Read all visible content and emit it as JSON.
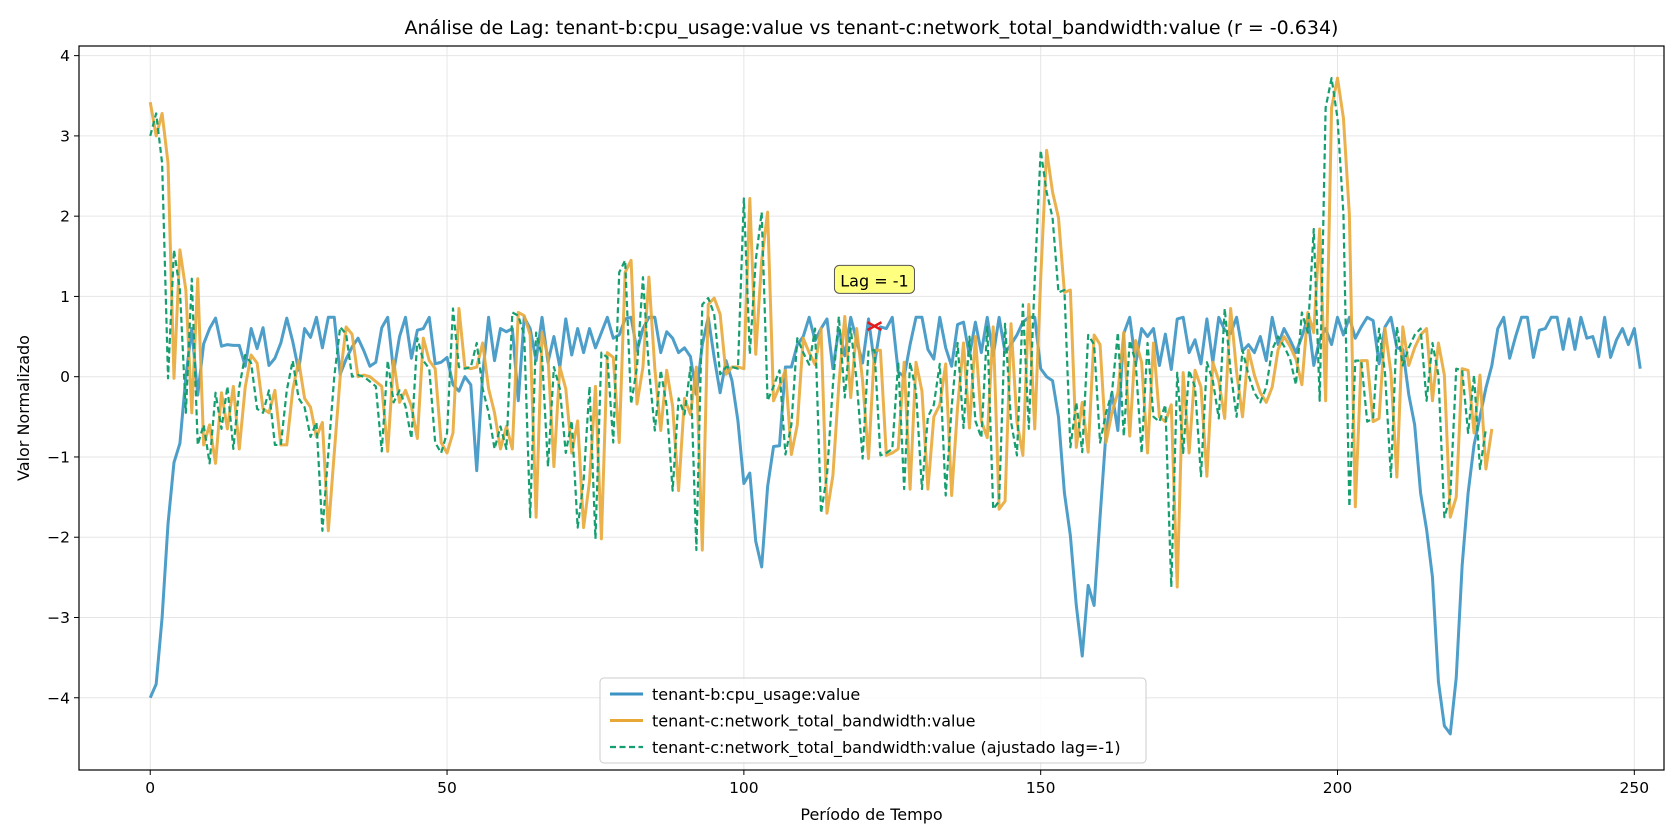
{
  "chart_data": {
    "type": "line",
    "title": "Análise de Lag: tenant-b:cpu_usage:value vs tenant-c:network_total_bandwidth:value (r = -0.634)",
    "xlabel": "Período de Tempo",
    "ylabel": "Valor Normalizado",
    "xlim": [
      -12,
      255
    ],
    "ylim": [
      -4.9,
      4.12
    ],
    "xticks": [
      0,
      50,
      100,
      150,
      200,
      250
    ],
    "yticks": [
      -4,
      -3,
      -2,
      -1,
      0,
      1,
      2,
      3,
      4
    ],
    "grid": true,
    "legend_position": "lower center",
    "annotation": {
      "text": "Lag = -1",
      "point": [
        122,
        0.63
      ],
      "label_at": [
        122,
        1.25
      ],
      "marker": "red x"
    },
    "colors": {
      "series1": "#3a93c3",
      "series2": "#e8a838",
      "series3": "#159e6e",
      "marker": "#e41a1c",
      "annot_bg": "#ffff80"
    },
    "series": [
      {
        "name": "tenant-b:cpu_usage:value",
        "style": "solid",
        "values": [
          -4.0,
          -3.83,
          -3.0,
          -1.83,
          -1.07,
          -0.83,
          0.0,
          0.6,
          -0.23,
          0.41,
          0.6,
          0.73,
          0.38,
          0.4,
          0.39,
          0.39,
          0.13,
          0.6,
          0.35,
          0.61,
          0.14,
          0.23,
          0.42,
          0.73,
          0.44,
          0.08,
          0.6,
          0.49,
          0.74,
          0.36,
          0.74,
          0.74,
          0.03,
          0.22,
          0.37,
          0.48,
          0.32,
          0.13,
          0.18,
          0.61,
          0.74,
          0.06,
          0.5,
          0.74,
          0.23,
          0.58,
          0.6,
          0.74,
          0.16,
          0.18,
          0.24,
          -0.1,
          -0.18,
          0.0,
          -0.1,
          -1.17,
          0.03,
          0.74,
          0.2,
          0.6,
          0.56,
          0.6,
          -0.3,
          0.74,
          0.6,
          0.2,
          0.74,
          0.18,
          0.5,
          0.12,
          0.72,
          0.27,
          0.6,
          0.3,
          0.6,
          0.36,
          0.55,
          0.74,
          0.48,
          0.52,
          0.72,
          0.74,
          0.32,
          0.6,
          0.74,
          0.74,
          0.3,
          0.56,
          0.48,
          0.3,
          0.36,
          0.25,
          -0.22,
          0.4,
          0.74,
          0.24,
          -0.2,
          0.2,
          -0.05,
          -0.55,
          -1.33,
          -1.2,
          -2.05,
          -2.37,
          -1.37,
          -0.87,
          -0.86,
          0.12,
          0.12,
          0.4,
          0.5,
          0.74,
          0.45,
          0.6,
          0.72,
          0.1,
          0.6,
          0.26,
          0.74,
          0.45,
          0.17,
          0.72,
          0.16,
          0.62,
          0.6,
          0.74,
          0.06,
          0.0,
          0.4,
          0.74,
          0.74,
          0.34,
          0.22,
          0.74,
          0.36,
          0.13,
          0.65,
          0.68,
          0.26,
          0.68,
          0.3,
          0.74,
          0.26,
          0.74,
          0.3,
          0.4,
          0.52,
          0.68,
          0.74,
          0.74,
          0.1,
          0.0,
          -0.05,
          -0.5,
          -1.45,
          -1.98,
          -2.85,
          -3.48,
          -2.6,
          -2.85,
          -1.75,
          -0.7,
          -0.2,
          -0.67,
          0.54,
          0.74,
          0.16,
          0.6,
          0.5,
          0.6,
          0.14,
          0.53,
          0.09,
          0.72,
          0.74,
          0.3,
          0.46,
          0.16,
          0.72,
          0.18,
          0.74,
          0.58,
          0.54,
          0.74,
          0.32,
          0.4,
          0.3,
          0.5,
          0.2,
          0.74,
          0.4,
          0.6,
          0.46,
          0.3,
          0.5,
          0.74,
          0.14,
          0.46,
          0.6,
          0.4,
          0.74,
          0.52,
          0.74,
          0.48,
          0.62,
          0.74,
          0.7,
          0.16,
          0.62,
          0.74,
          0.36,
          0.34,
          -0.22,
          -0.6,
          -1.45,
          -1.9,
          -2.5,
          -3.8,
          -4.35,
          -4.45,
          -3.75,
          -2.35,
          -1.45,
          -0.85,
          -0.5,
          -0.14,
          0.14,
          0.6,
          0.74,
          0.23,
          0.5,
          0.74,
          0.74,
          0.24,
          0.58,
          0.6,
          0.74,
          0.74,
          0.34,
          0.72,
          0.34,
          0.74,
          0.48,
          0.5,
          0.25,
          0.74,
          0.24,
          0.46,
          0.6,
          0.4,
          0.6,
          0.1
        ]
      },
      {
        "name": "tenant-c:network_total_bandwidth:value",
        "style": "solid",
        "values": [
          3.42,
          3.0,
          3.28,
          2.66,
          -0.02,
          1.58,
          1.08,
          -0.45,
          1.22,
          -0.85,
          -0.6,
          -1.08,
          -0.2,
          -0.65,
          -0.12,
          -0.9,
          -0.13,
          0.27,
          0.17,
          -0.4,
          -0.45,
          -0.17,
          -0.85,
          -0.85,
          -0.17,
          0.2,
          -0.27,
          -0.38,
          -0.75,
          -0.57,
          -1.92,
          -0.95,
          0.0,
          0.62,
          0.53,
          0.0,
          0.02,
          0.0,
          -0.06,
          -0.12,
          -0.93,
          0.2,
          -0.32,
          -0.17,
          -0.37,
          -0.77,
          0.48,
          0.2,
          0.1,
          -0.82,
          -0.95,
          -0.7,
          0.85,
          0.12,
          0.1,
          0.12,
          0.42,
          -0.15,
          -0.45,
          -0.9,
          -0.62,
          -0.9,
          0.8,
          0.76,
          0.52,
          -1.75,
          0.55,
          0.25,
          -1.12,
          0.12,
          -0.15,
          -0.95,
          -0.55,
          -1.88,
          -1.3,
          -0.12,
          -2.02,
          0.3,
          0.24,
          -0.82,
          1.3,
          1.45,
          -0.34,
          0.12,
          1.24,
          0.1,
          -0.67,
          0.08,
          -0.37,
          -1.42,
          -0.27,
          -0.47,
          0.12,
          -2.16,
          0.9,
          0.98,
          0.78,
          0.03,
          0.12,
          0.12,
          0.1,
          2.22,
          0.28,
          1.45,
          2.05,
          -0.3,
          -0.12,
          0.08,
          -0.97,
          -0.6,
          0.48,
          0.3,
          0.15,
          0.6,
          -1.7,
          -1.23,
          -0.1,
          0.75,
          -0.26,
          0.6,
          -0.05,
          -1.02,
          0.33,
          0.33,
          -0.98,
          -0.95,
          -0.9,
          0.18,
          -1.4,
          0.18,
          -0.18,
          -1.4,
          -0.5,
          -0.35,
          0.16,
          -1.48,
          -0.38,
          0.42,
          -0.64,
          0.5,
          -0.55,
          -0.76,
          0.62,
          -1.65,
          -1.55,
          0.66,
          -0.56,
          -0.98,
          0.9,
          -0.65,
          1.22,
          2.82,
          2.3,
          1.98,
          1.05,
          1.08,
          -0.88,
          -0.32,
          -0.94,
          0.52,
          0.4,
          -0.82,
          -0.45,
          -0.2,
          0.55,
          -0.74,
          0.45,
          0.18,
          -0.95,
          0.42,
          -0.5,
          -0.56,
          -0.35,
          -2.62,
          0.05,
          -0.95,
          0.08,
          -0.13,
          -1.24,
          0.18,
          -0.05,
          -0.52,
          0.85,
          0.06,
          -0.5,
          0.33,
          0.02,
          -0.2,
          -0.32,
          -0.13,
          0.34,
          0.5,
          0.38,
          0.22,
          -0.1,
          0.8,
          0.55,
          1.84,
          -0.3,
          3.35,
          3.72,
          3.22,
          2.02,
          -1.62,
          0.2,
          0.2,
          -0.56,
          -0.52,
          0.6,
          0.05,
          -1.25,
          0.62,
          0.14,
          0.36,
          0.52,
          0.6,
          -0.3,
          0.42,
          0.02,
          -1.75,
          -1.5,
          0.1,
          0.08,
          -0.7,
          0.02,
          -1.15,
          -0.65
        ]
      },
      {
        "name": "tenant-c:network_total_bandwidth:value (ajustado lag=-1)",
        "style": "dashed",
        "values": [
          3.0,
          3.28,
          2.66,
          -0.02,
          1.58,
          1.08,
          -0.45,
          1.22,
          -0.85,
          -0.6,
          -1.08,
          -0.2,
          -0.65,
          -0.12,
          -0.9,
          -0.13,
          0.27,
          0.17,
          -0.4,
          -0.45,
          -0.17,
          -0.85,
          -0.85,
          -0.17,
          0.2,
          -0.27,
          -0.38,
          -0.75,
          -0.57,
          -1.92,
          -0.95,
          0.0,
          0.62,
          0.53,
          0.0,
          0.02,
          0.0,
          -0.06,
          -0.12,
          -0.93,
          0.2,
          -0.32,
          -0.17,
          -0.37,
          -0.77,
          0.48,
          0.2,
          0.1,
          -0.82,
          -0.95,
          -0.7,
          0.85,
          0.12,
          0.1,
          0.12,
          0.42,
          -0.15,
          -0.45,
          -0.9,
          -0.62,
          -0.9,
          0.8,
          0.76,
          0.52,
          -1.75,
          0.55,
          0.25,
          -1.12,
          0.12,
          -0.15,
          -0.95,
          -0.55,
          -1.88,
          -1.3,
          -0.12,
          -2.02,
          0.3,
          0.24,
          -0.82,
          1.3,
          1.45,
          -0.34,
          0.12,
          1.24,
          0.1,
          -0.67,
          0.08,
          -0.37,
          -1.42,
          -0.27,
          -0.47,
          0.12,
          -2.16,
          0.9,
          0.98,
          0.78,
          0.03,
          0.12,
          0.12,
          0.1,
          2.22,
          0.28,
          1.45,
          2.05,
          -0.3,
          -0.12,
          0.08,
          -0.97,
          -0.6,
          0.48,
          0.3,
          0.15,
          0.6,
          -1.7,
          -1.23,
          -0.1,
          0.75,
          -0.26,
          0.6,
          -0.05,
          -1.02,
          0.33,
          0.33,
          -0.98,
          -0.95,
          -0.9,
          0.18,
          -1.4,
          0.18,
          -0.18,
          -1.4,
          -0.5,
          -0.35,
          0.16,
          -1.48,
          -0.38,
          0.42,
          -0.64,
          0.5,
          -0.55,
          -0.76,
          0.62,
          -1.65,
          -1.55,
          0.66,
          -0.56,
          -0.98,
          0.9,
          -0.65,
          1.22,
          2.82,
          2.3,
          1.98,
          1.05,
          1.08,
          -0.88,
          -0.32,
          -0.94,
          0.52,
          0.4,
          -0.82,
          -0.45,
          -0.2,
          0.55,
          -0.74,
          0.45,
          0.18,
          -0.95,
          0.42,
          -0.5,
          -0.56,
          -0.35,
          -2.62,
          0.05,
          -0.95,
          0.08,
          -0.13,
          -1.24,
          0.18,
          -0.05,
          -0.52,
          0.85,
          0.06,
          -0.5,
          0.33,
          0.02,
          -0.2,
          -0.32,
          -0.13,
          0.34,
          0.5,
          0.38,
          0.22,
          -0.1,
          0.8,
          0.55,
          1.84,
          -0.3,
          3.35,
          3.72,
          3.22,
          2.02,
          -1.62,
          0.2,
          0.2,
          -0.56,
          -0.52,
          0.6,
          0.05,
          -1.25,
          0.62,
          0.14,
          0.36,
          0.52,
          0.6,
          -0.3,
          0.42,
          0.02,
          -1.75,
          -1.5,
          0.1,
          0.08,
          -0.7,
          0.02,
          -1.15,
          -0.65
        ]
      }
    ]
  }
}
